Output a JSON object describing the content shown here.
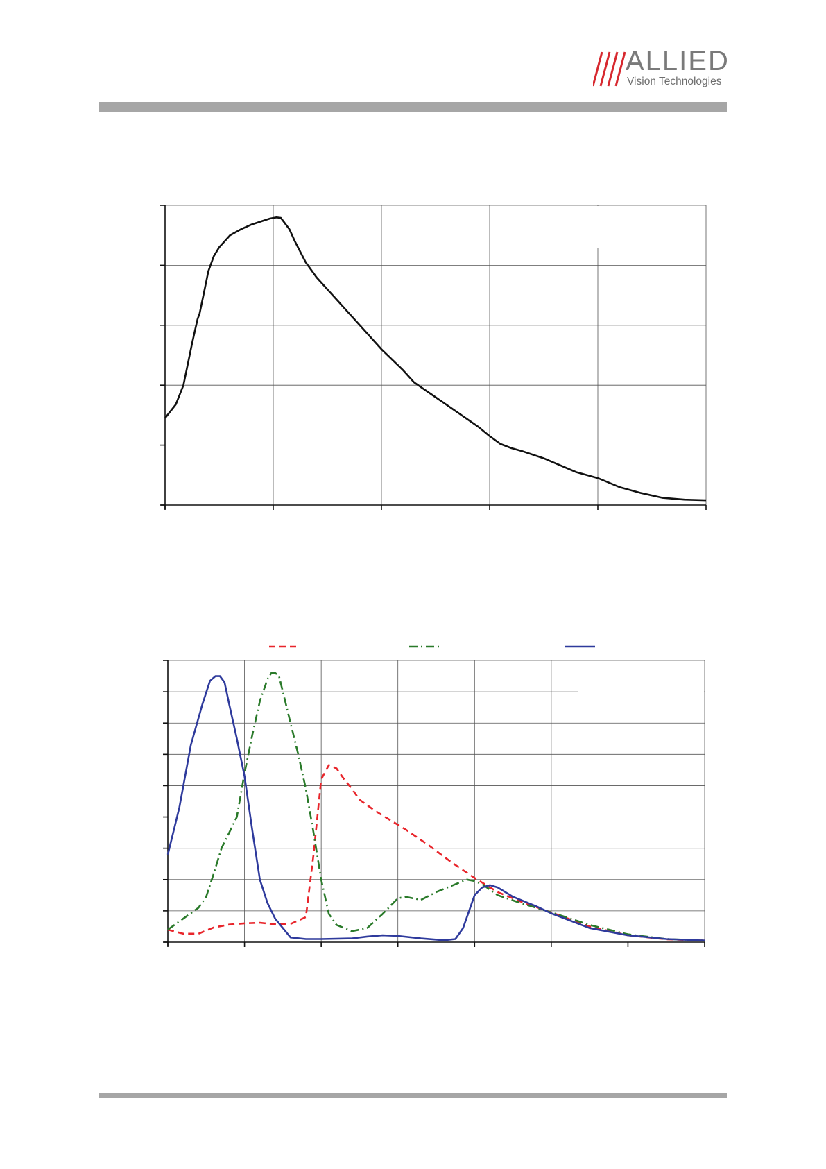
{
  "header": {
    "logo_word": "ALLIED",
    "logo_subtitle": "Vision Technologies",
    "logo_accent": "#d7282f",
    "logo_gray": "#7a7a7a"
  },
  "chart_data": [
    {
      "type": "line",
      "title": "",
      "xlabel": "",
      "ylabel": "",
      "xlim": [
        0,
        5
      ],
      "ylim": [
        0,
        5
      ],
      "x_ticks": 5,
      "y_ticks": 5,
      "grid": true,
      "series": [
        {
          "color": "#111111",
          "style": "solid",
          "x": [
            0,
            0.1,
            0.17,
            0.25,
            0.3,
            0.32,
            0.36,
            0.4,
            0.45,
            0.5,
            0.6,
            0.7,
            0.8,
            0.9,
            0.97,
            1.0,
            1.03,
            1.07,
            1.1,
            1.15,
            1.2,
            1.3,
            1.4,
            1.5,
            1.6,
            1.8,
            2.0,
            2.2,
            2.3,
            2.5,
            2.7,
            2.9,
            3.0,
            3.1,
            3.2,
            3.3,
            3.5,
            3.8,
            4.0,
            4.2,
            4.4,
            4.6,
            4.8,
            5.0
          ],
          "y": [
            1.45,
            1.68,
            2.0,
            2.7,
            3.1,
            3.2,
            3.55,
            3.9,
            4.15,
            4.3,
            4.5,
            4.6,
            4.68,
            4.74,
            4.78,
            4.79,
            4.8,
            4.79,
            4.72,
            4.6,
            4.4,
            4.05,
            3.8,
            3.6,
            3.4,
            3.0,
            2.6,
            2.25,
            2.05,
            1.8,
            1.55,
            1.3,
            1.15,
            1.02,
            0.95,
            0.9,
            0.78,
            0.55,
            0.45,
            0.3,
            0.2,
            0.12,
            0.09,
            0.08
          ]
        }
      ]
    },
    {
      "type": "line",
      "title": "",
      "xlabel": "",
      "ylabel": "",
      "xlim": [
        0,
        7
      ],
      "ylim": [
        0,
        9
      ],
      "x_ticks": 7,
      "y_ticks": 9,
      "grid": true,
      "series": [
        {
          "color": "#e8252b",
          "style": "dashed",
          "x": [
            0,
            0.2,
            0.4,
            0.6,
            0.8,
            1.0,
            1.2,
            1.4,
            1.6,
            1.8,
            1.9,
            2.0,
            2.1,
            2.2,
            2.3,
            2.4,
            2.5,
            2.7,
            2.9,
            3.1,
            3.4,
            3.7,
            4.0,
            4.3,
            4.6,
            5.0,
            5.5,
            6.0,
            6.5,
            7.0
          ],
          "y": [
            0.4,
            0.27,
            0.27,
            0.47,
            0.56,
            0.6,
            0.62,
            0.57,
            0.58,
            0.8,
            2.8,
            5.2,
            5.66,
            5.55,
            5.2,
            4.9,
            4.55,
            4.2,
            3.9,
            3.6,
            3.1,
            2.55,
            2.05,
            1.6,
            1.3,
            0.95,
            0.5,
            0.22,
            0.09,
            0.05
          ]
        },
        {
          "color": "#2a7a2a",
          "style": "dashdot",
          "x": [
            0,
            0.2,
            0.4,
            0.5,
            0.6,
            0.7,
            0.8,
            0.9,
            1.0,
            1.1,
            1.2,
            1.3,
            1.35,
            1.4,
            1.45,
            1.5,
            1.6,
            1.7,
            1.8,
            1.9,
            2.0,
            2.1,
            2.2,
            2.4,
            2.6,
            2.8,
            3.0,
            3.1,
            3.3,
            3.5,
            3.7,
            3.9,
            4.0,
            4.1,
            4.3,
            4.6,
            5.0,
            5.5,
            6.0,
            6.5,
            7.0
          ],
          "y": [
            0.4,
            0.75,
            1.1,
            1.45,
            2.2,
            3.0,
            3.5,
            4.0,
            5.4,
            6.6,
            7.7,
            8.4,
            8.6,
            8.6,
            8.5,
            8.0,
            7.0,
            6.0,
            4.9,
            3.5,
            2.0,
            0.9,
            0.55,
            0.35,
            0.45,
            0.9,
            1.4,
            1.45,
            1.35,
            1.6,
            1.8,
            2.0,
            1.95,
            1.85,
            1.5,
            1.25,
            0.95,
            0.55,
            0.25,
            0.1,
            0.05
          ]
        },
        {
          "color": "#2e3a9c",
          "style": "solid",
          "x": [
            0,
            0.15,
            0.3,
            0.45,
            0.55,
            0.62,
            0.68,
            0.74,
            0.8,
            0.9,
            1.0,
            1.1,
            1.2,
            1.3,
            1.4,
            1.6,
            1.8,
            2.0,
            2.4,
            2.6,
            2.8,
            3.0,
            3.3,
            3.6,
            3.75,
            3.85,
            4.0,
            4.1,
            4.2,
            4.3,
            4.5,
            4.8,
            5.0,
            5.5,
            6.0,
            6.5,
            7.0
          ],
          "y": [
            2.8,
            4.3,
            6.3,
            7.6,
            8.35,
            8.5,
            8.5,
            8.3,
            7.6,
            6.5,
            5.3,
            3.6,
            2.0,
            1.25,
            0.75,
            0.15,
            0.1,
            0.1,
            0.12,
            0.18,
            0.22,
            0.2,
            0.12,
            0.06,
            0.1,
            0.45,
            1.5,
            1.75,
            1.82,
            1.75,
            1.45,
            1.15,
            0.92,
            0.45,
            0.22,
            0.1,
            0.05
          ]
        }
      ]
    }
  ]
}
